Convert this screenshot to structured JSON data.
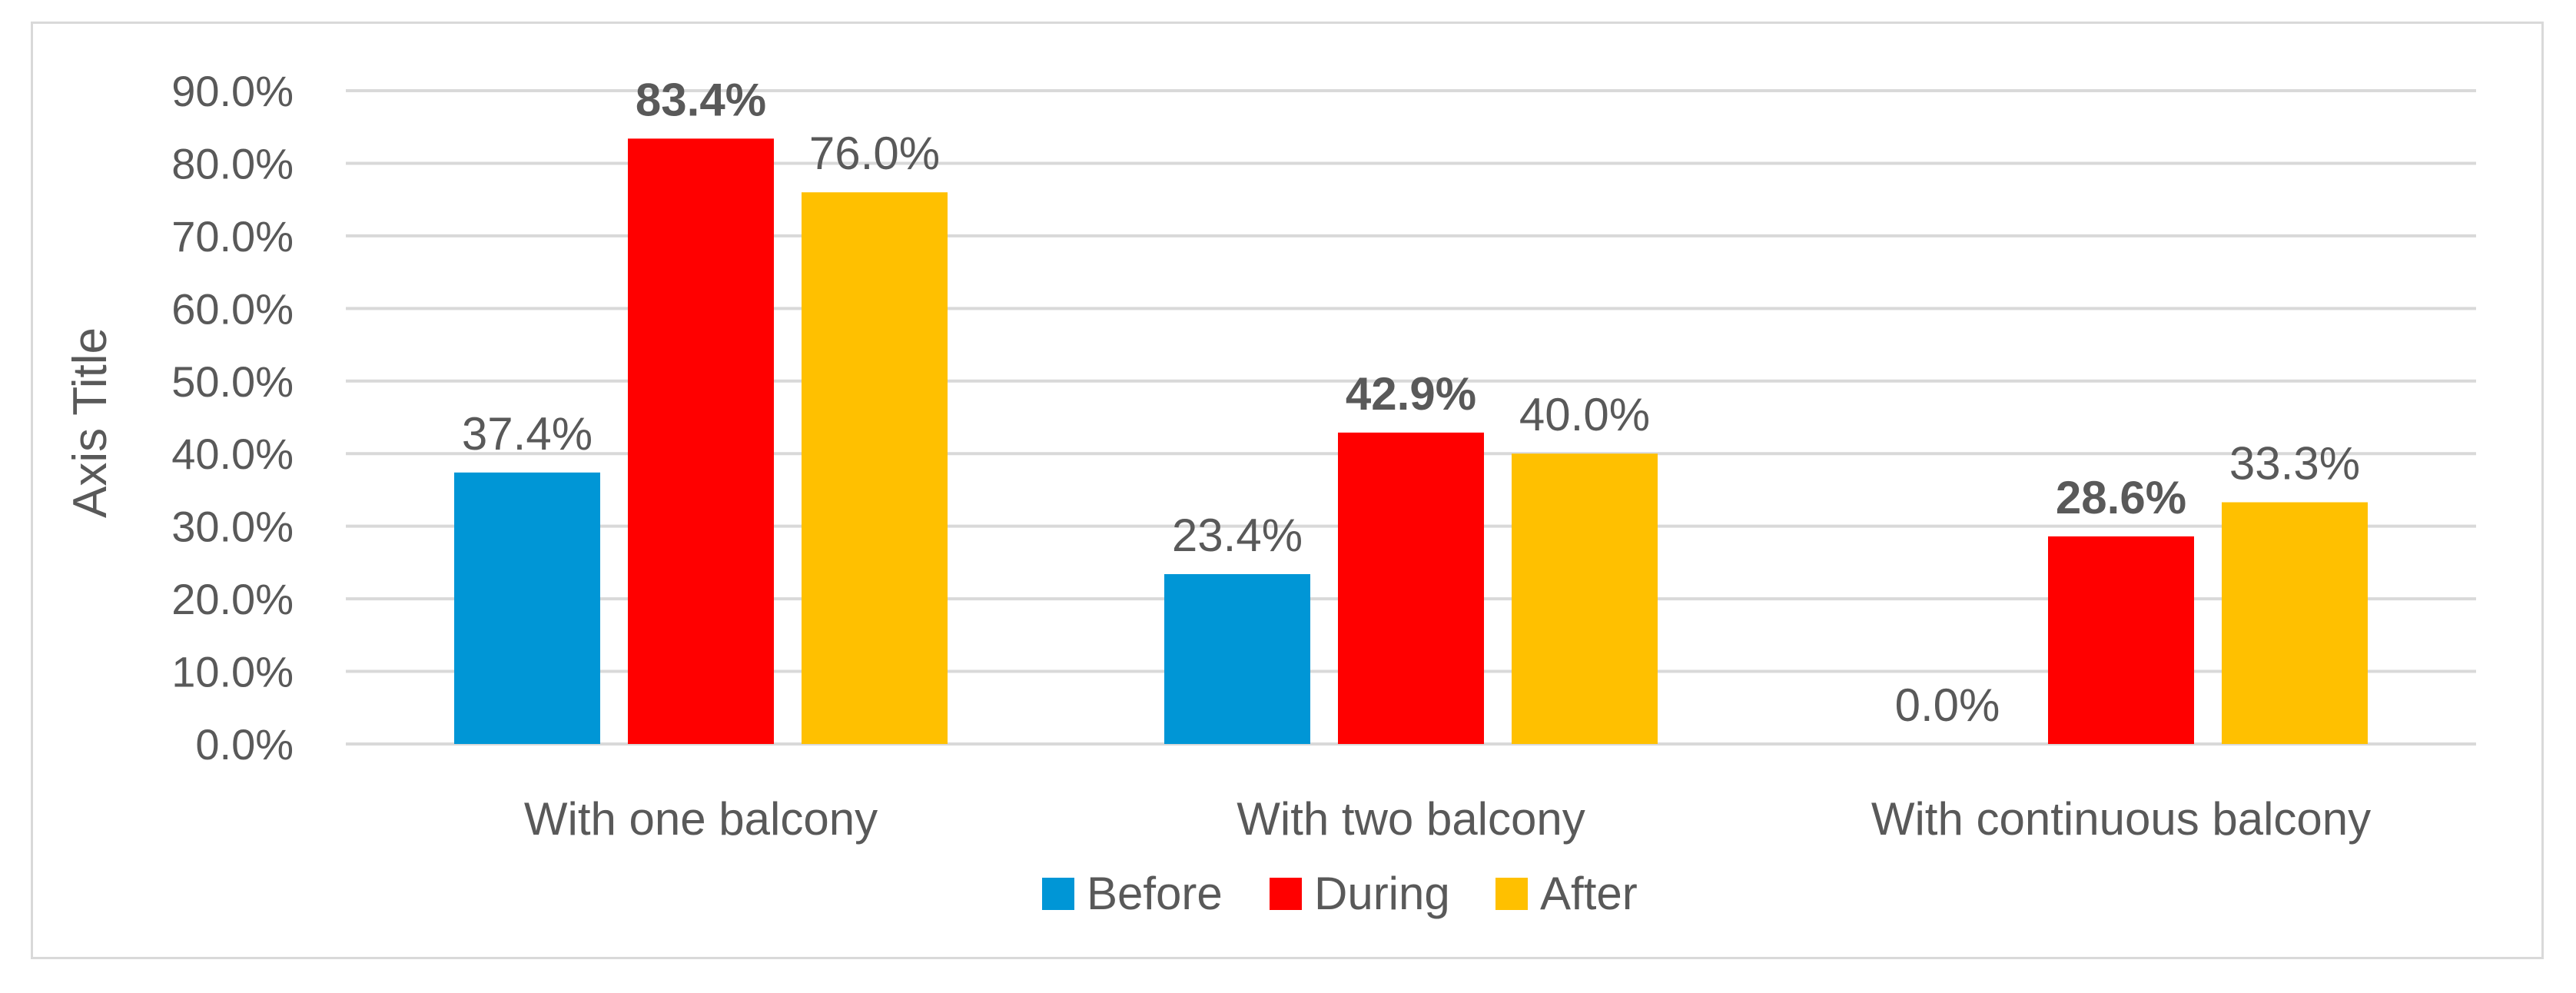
{
  "chart_data": {
    "type": "bar",
    "ylabel": "Axis Title",
    "ylim": [
      0,
      90
    ],
    "y_ticks": [
      "0.0%",
      "10.0%",
      "20.0%",
      "30.0%",
      "40.0%",
      "50.0%",
      "60.0%",
      "70.0%",
      "80.0%",
      "90.0%"
    ],
    "grid": true,
    "legend_position": "bottom",
    "categories": [
      "With one balcony",
      "With two balcony",
      "With continuous balcony"
    ],
    "series": [
      {
        "name": "Before",
        "color": "#0096d6",
        "values": [
          37.4,
          23.4,
          0.0
        ],
        "labels": [
          "37.4%",
          "23.4%",
          "0.0%"
        ],
        "bold": false
      },
      {
        "name": "During",
        "color": "#ff0000",
        "values": [
          83.4,
          42.9,
          28.6
        ],
        "labels": [
          "83.4%",
          "42.9%",
          "28.6%"
        ],
        "bold": true
      },
      {
        "name": "After",
        "color": "#ffc000",
        "values": [
          76.0,
          40.0,
          33.3
        ],
        "labels": [
          "76.0%",
          "40.0%",
          "33.3%"
        ],
        "bold": false
      }
    ]
  }
}
